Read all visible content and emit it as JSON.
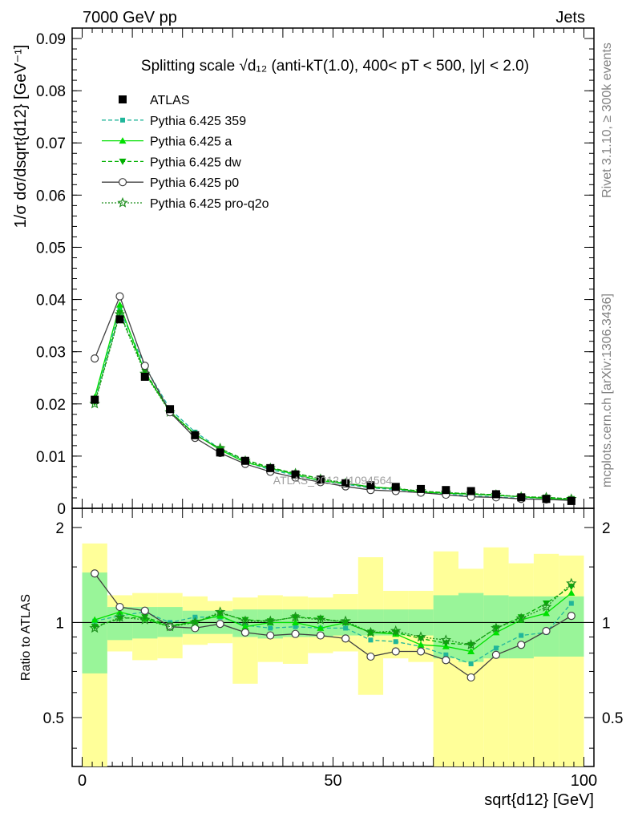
{
  "header": {
    "left": "7000 GeV pp",
    "right": "Jets"
  },
  "side_labels": {
    "rivet": "Rivet 3.1.10, ≥ 300k events",
    "mcplots": "mcplots.cern.ch [arXiv:1306.3436]"
  },
  "watermark": "ATLAS_2012_I1094564",
  "colors": {
    "atlas": "#000000",
    "p359": "#20b69a",
    "a": "#00e000",
    "dw": "#00b000",
    "p0": "#404040",
    "q2o": "#1f8f1f",
    "band_outer": "#ffff99",
    "band_inner": "#99f599"
  },
  "chart_data": [
    {
      "type": "line",
      "title": "Splitting scale √d₁₂ (anti-kT(1.0), 400< pT < 500, |y| < 2.0)",
      "ylabel": "1/σ dσ/dsqrt{d12} [GeV⁻¹]",
      "xlim": [
        -2,
        102
      ],
      "ylim": [
        0,
        0.092
      ],
      "yticks": [
        "0",
        "0.01",
        "0.02",
        "0.03",
        "0.04",
        "0.05",
        "0.06",
        "0.07",
        "0.08",
        "0.09"
      ],
      "x": [
        2.5,
        7.5,
        12.5,
        17.5,
        22.5,
        27.5,
        32.5,
        37.5,
        42.5,
        47.5,
        52.5,
        57.5,
        62.5,
        67.5,
        72.5,
        77.5,
        82.5,
        87.5,
        92.5,
        97.5
      ],
      "legend": [
        "ATLAS",
        "Pythia 6.425 359",
        "Pythia 6.425 a",
        "Pythia 6.425 dw",
        "Pythia 6.425 p0",
        "Pythia 6.425 pro-q2o"
      ],
      "series": [
        {
          "name": "ATLAS",
          "values": [
            0.0208,
            0.0362,
            0.0252,
            0.019,
            0.014,
            0.0107,
            0.0091,
            0.0077,
            0.0065,
            0.0055,
            0.0048,
            0.0044,
            0.0041,
            0.0037,
            0.0035,
            0.0033,
            0.0027,
            0.0021,
            0.0018,
            0.0014
          ]
        },
        {
          "name": "Pythia 6.425 359",
          "values": [
            0.021,
            0.038,
            0.0272,
            0.019,
            0.0146,
            0.0114,
            0.0089,
            0.0074,
            0.0063,
            0.0053,
            0.0046,
            0.0039,
            0.0036,
            0.0031,
            0.0027,
            0.0024,
            0.0022,
            0.0019,
            0.0017,
            0.0016
          ]
        },
        {
          "name": "Pythia 6.425 a",
          "values": [
            0.0213,
            0.039,
            0.026,
            0.0185,
            0.0142,
            0.0112,
            0.0088,
            0.0077,
            0.0065,
            0.0053,
            0.0048,
            0.0041,
            0.0038,
            0.0031,
            0.0029,
            0.0027,
            0.0025,
            0.0022,
            0.0019,
            0.0017
          ]
        },
        {
          "name": "Pythia 6.425 dw",
          "values": [
            0.0203,
            0.0374,
            0.0262,
            0.0186,
            0.0141,
            0.0114,
            0.0093,
            0.0078,
            0.0067,
            0.0057,
            0.0048,
            0.0041,
            0.0038,
            0.0033,
            0.003,
            0.0028,
            0.0026,
            0.0022,
            0.0021,
            0.0018
          ]
        },
        {
          "name": "Pythia 6.425 p0",
          "values": [
            0.0287,
            0.0406,
            0.0273,
            0.0184,
            0.0135,
            0.0106,
            0.0085,
            0.007,
            0.0059,
            0.005,
            0.0042,
            0.0035,
            0.0033,
            0.003,
            0.0026,
            0.0022,
            0.0021,
            0.0018,
            0.0017,
            0.0015
          ]
        },
        {
          "name": "Pythia 6.425 pro-q2o",
          "values": [
            0.02,
            0.0372,
            0.0258,
            0.0184,
            0.014,
            0.0115,
            0.0091,
            0.0077,
            0.0067,
            0.0056,
            0.0048,
            0.004,
            0.0038,
            0.0033,
            0.003,
            0.0028,
            0.0026,
            0.0022,
            0.0021,
            0.0018
          ]
        }
      ]
    },
    {
      "type": "line",
      "ylabel": "Ratio to ATLAS",
      "xlabel": "sqrt{d12} [GeV]",
      "xlim": [
        -2,
        102
      ],
      "ylim": [
        0.35,
        2.3
      ],
      "ylog": true,
      "yticks": [
        "0.5",
        "1",
        "2"
      ],
      "xticks": [
        "0",
        "50",
        "100"
      ],
      "x": [
        2.5,
        7.5,
        12.5,
        17.5,
        22.5,
        27.5,
        32.5,
        37.5,
        42.5,
        47.5,
        52.5,
        57.5,
        62.5,
        67.5,
        72.5,
        77.5,
        82.5,
        87.5,
        92.5,
        97.5
      ],
      "band_outer": [
        [
          0.35,
          1.78
        ],
        [
          0.81,
          1.22
        ],
        [
          0.76,
          1.24
        ],
        [
          0.77,
          1.24
        ],
        [
          0.85,
          1.21
        ],
        [
          0.86,
          1.17
        ],
        [
          0.64,
          1.2
        ],
        [
          0.75,
          1.22
        ],
        [
          0.74,
          1.21
        ],
        [
          0.8,
          1.2
        ],
        [
          0.81,
          1.23
        ],
        [
          0.59,
          1.61
        ],
        [
          0.77,
          1.26
        ],
        [
          0.75,
          1.26
        ],
        [
          0.35,
          1.68
        ],
        [
          0.35,
          1.48
        ],
        [
          0.35,
          1.73
        ],
        [
          0.35,
          1.54
        ],
        [
          0.35,
          1.65
        ],
        [
          0.35,
          1.63
        ]
      ],
      "band_inner": [
        [
          0.69,
          1.44
        ],
        [
          0.88,
          1.12
        ],
        [
          0.89,
          1.12
        ],
        [
          0.9,
          1.12
        ],
        [
          0.92,
          1.09
        ],
        [
          0.92,
          1.09
        ],
        [
          0.9,
          1.1
        ],
        [
          0.89,
          1.1
        ],
        [
          0.9,
          1.1
        ],
        [
          0.9,
          1.1
        ],
        [
          0.91,
          1.1
        ],
        [
          0.91,
          1.1
        ],
        [
          0.91,
          1.1
        ],
        [
          0.91,
          1.1
        ],
        [
          0.77,
          1.22
        ],
        [
          0.75,
          1.24
        ],
        [
          0.77,
          1.22
        ],
        [
          0.77,
          1.21
        ],
        [
          0.78,
          1.21
        ],
        [
          0.78,
          1.21
        ]
      ],
      "series": [
        {
          "name": "Pythia 6.425 359",
          "values": [
            1.01,
            1.05,
            1.08,
            1.0,
            1.04,
            1.04,
            0.98,
            0.96,
            0.97,
            0.96,
            0.96,
            0.88,
            0.87,
            0.84,
            0.79,
            0.74,
            0.83,
            0.91,
            0.93,
            1.15
          ]
        },
        {
          "name": "Pythia 6.425 a",
          "values": [
            1.02,
            1.08,
            1.03,
            0.97,
            1.01,
            1.05,
            0.97,
            1.0,
            1.0,
            0.96,
            1.0,
            0.93,
            0.92,
            0.85,
            0.84,
            0.81,
            0.93,
            1.02,
            1.07,
            1.24
          ]
        },
        {
          "name": "Pythia 6.425 dw",
          "values": [
            0.97,
            1.03,
            1.04,
            0.98,
            1.0,
            1.07,
            1.02,
            1.01,
            1.04,
            1.03,
            1.0,
            0.93,
            0.93,
            0.89,
            0.86,
            0.85,
            0.96,
            1.04,
            1.15,
            1.3
          ]
        },
        {
          "name": "Pythia 6.425 p0",
          "values": [
            1.43,
            1.12,
            1.09,
            0.97,
            0.96,
            0.99,
            0.93,
            0.91,
            0.92,
            0.91,
            0.89,
            0.78,
            0.81,
            0.81,
            0.76,
            0.67,
            0.79,
            0.85,
            0.94,
            1.05
          ]
        },
        {
          "name": "Pythia 6.425 pro-q2o",
          "values": [
            0.96,
            1.04,
            1.02,
            0.97,
            1.0,
            1.08,
            1.01,
            1.01,
            1.04,
            1.02,
            1.01,
            0.93,
            0.94,
            0.9,
            0.88,
            0.85,
            0.96,
            1.03,
            1.12,
            1.33
          ]
        }
      ]
    }
  ]
}
